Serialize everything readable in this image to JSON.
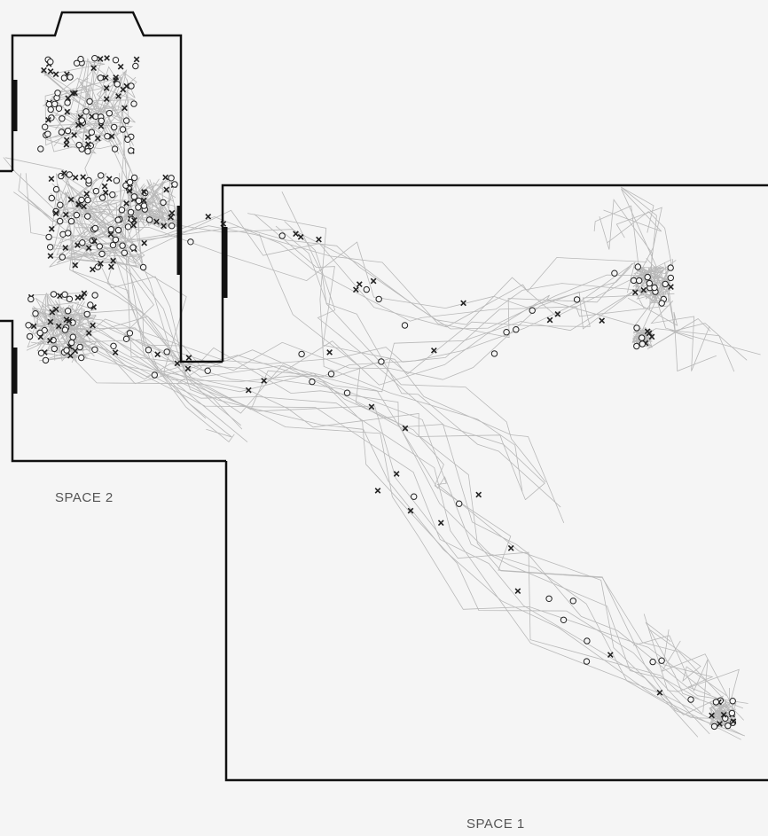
{
  "labels": {
    "space1": "SPACE 1",
    "space2": "SPACE 2"
  },
  "colors": {
    "background": "#f5f5f5",
    "wall": "#111111",
    "trajectory": "#b8b8b8",
    "marker": "#222222",
    "label": "#555555"
  },
  "marker_types": [
    "circle-marker",
    "cross-marker"
  ]
}
